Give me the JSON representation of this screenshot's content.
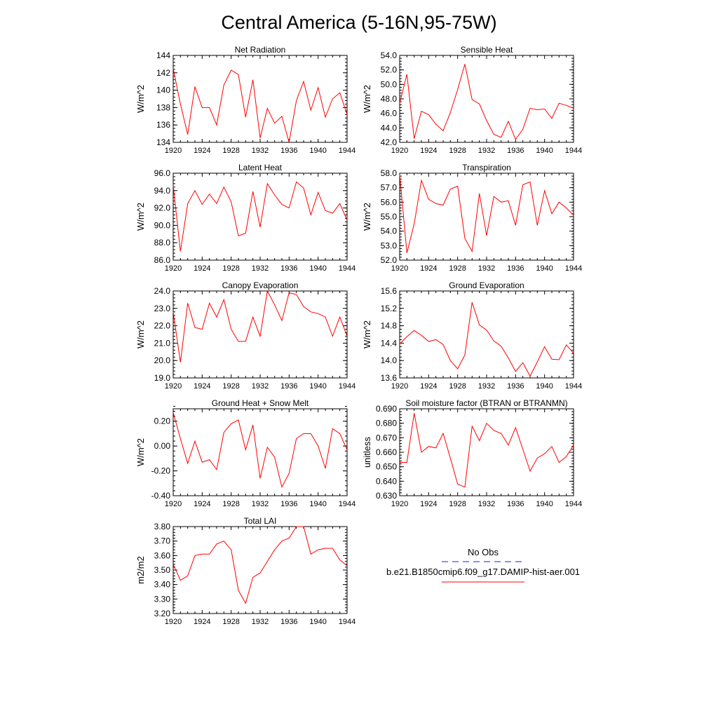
{
  "page_title": "Central America (5-16N,95-75W)",
  "legend": {
    "entries": [
      {
        "label": "No Obs",
        "color": "#1a1aff",
        "dash": true
      },
      {
        "label": "b.e21.B1850cmip6.f09_g17.DAMIP-hist-aer.001",
        "color": "#ff0000",
        "dash": false
      }
    ]
  },
  "colors": {
    "series": "#ff0000",
    "axis": "#000000"
  },
  "chart_data": [
    {
      "type": "line",
      "title": "Net Radiation",
      "ylabel": "W/m^2",
      "xlim": [
        1920,
        1944
      ],
      "ylim": [
        134,
        144
      ],
      "xticks": [
        1920,
        1924,
        1928,
        1932,
        1936,
        1940,
        1944
      ],
      "yticks": [
        134,
        136,
        138,
        140,
        142,
        144
      ],
      "ytick_labels": [
        "134",
        "136",
        "138",
        "140",
        "142",
        "144"
      ],
      "x": [
        1920,
        1921,
        1922,
        1923,
        1924,
        1925,
        1926,
        1927,
        1928,
        1929,
        1930,
        1931,
        1932,
        1933,
        1934,
        1935,
        1936,
        1937,
        1938,
        1939,
        1940,
        1941,
        1942,
        1943,
        1944
      ],
      "series": [
        {
          "values": [
            142.5,
            138.4,
            134.9,
            140.4,
            138.0,
            138.0,
            136.0,
            140.6,
            142.3,
            141.8,
            136.9,
            141.2,
            134.5,
            137.9,
            136.2,
            137.0,
            134.0,
            138.8,
            141.0,
            137.7,
            140.3,
            136.9,
            139.0,
            139.7,
            137.2
          ]
        }
      ]
    },
    {
      "type": "line",
      "title": "Sensible Heat",
      "ylabel": "W/m^2",
      "xlim": [
        1920,
        1944
      ],
      "ylim": [
        42,
        54
      ],
      "xticks": [
        1920,
        1924,
        1928,
        1932,
        1936,
        1940,
        1944
      ],
      "yticks": [
        42,
        44,
        46,
        48,
        50,
        52,
        54
      ],
      "ytick_labels": [
        "42.0",
        "44.0",
        "46.0",
        "48.0",
        "50.0",
        "52.0",
        "54.0"
      ],
      "x": [
        1920,
        1921,
        1922,
        1923,
        1924,
        1925,
        1926,
        1927,
        1928,
        1929,
        1930,
        1931,
        1932,
        1933,
        1934,
        1935,
        1936,
        1937,
        1938,
        1939,
        1940,
        1941,
        1942,
        1943,
        1944
      ],
      "series": [
        {
          "values": [
            47.4,
            51.4,
            42.5,
            46.3,
            45.8,
            44.5,
            43.6,
            46.1,
            49.3,
            52.8,
            47.9,
            47.3,
            45.0,
            43.1,
            42.7,
            44.9,
            42.4,
            43.8,
            46.7,
            46.5,
            46.6,
            45.3,
            47.4,
            47.1,
            46.7
          ]
        }
      ]
    },
    {
      "type": "line",
      "title": "Latent Heat",
      "ylabel": "W/m^2",
      "xlim": [
        1920,
        1944
      ],
      "ylim": [
        86,
        96
      ],
      "xticks": [
        1920,
        1924,
        1928,
        1932,
        1936,
        1940,
        1944
      ],
      "yticks": [
        86,
        88,
        90,
        92,
        94,
        96
      ],
      "ytick_labels": [
        "86.0",
        "88.0",
        "90.0",
        "92.0",
        "94.0",
        "96.0"
      ],
      "x": [
        1920,
        1921,
        1922,
        1923,
        1924,
        1925,
        1926,
        1927,
        1928,
        1929,
        1930,
        1931,
        1932,
        1933,
        1934,
        1935,
        1936,
        1937,
        1938,
        1939,
        1940,
        1941,
        1942,
        1943,
        1944
      ],
      "series": [
        {
          "values": [
            94.6,
            87.0,
            92.5,
            94.0,
            92.4,
            93.6,
            92.5,
            94.4,
            92.7,
            88.8,
            89.1,
            93.9,
            89.8,
            94.8,
            93.5,
            92.4,
            92.0,
            95.0,
            94.3,
            91.2,
            93.8,
            91.7,
            91.4,
            92.5,
            90.6
          ]
        }
      ]
    },
    {
      "type": "line",
      "title": "Transpiration",
      "ylabel": "W/m^2",
      "xlim": [
        1920,
        1944
      ],
      "ylim": [
        52,
        58
      ],
      "xticks": [
        1920,
        1924,
        1928,
        1932,
        1936,
        1940,
        1944
      ],
      "yticks": [
        52,
        53,
        54,
        55,
        56,
        57,
        58
      ],
      "ytick_labels": [
        "52.0",
        "53.0",
        "54.0",
        "55.0",
        "56.0",
        "57.0",
        "58.0"
      ],
      "x": [
        1920,
        1921,
        1922,
        1923,
        1924,
        1925,
        1926,
        1927,
        1928,
        1929,
        1930,
        1931,
        1932,
        1933,
        1934,
        1935,
        1936,
        1937,
        1938,
        1939,
        1940,
        1941,
        1942,
        1943,
        1944
      ],
      "series": [
        {
          "values": [
            57.9,
            52.5,
            54.5,
            57.5,
            56.2,
            55.9,
            55.8,
            56.9,
            57.1,
            53.5,
            52.6,
            56.6,
            53.7,
            56.4,
            56.0,
            56.1,
            54.4,
            57.2,
            57.4,
            54.4,
            56.8,
            55.2,
            56.0,
            55.6,
            55.1
          ]
        }
      ]
    },
    {
      "type": "line",
      "title": "Canopy Evaporation",
      "ylabel": "W/m^2",
      "xlim": [
        1920,
        1944
      ],
      "ylim": [
        19,
        24
      ],
      "xticks": [
        1920,
        1924,
        1928,
        1932,
        1936,
        1940,
        1944
      ],
      "yticks": [
        19,
        20,
        21,
        22,
        23,
        24
      ],
      "ytick_labels": [
        "19.0",
        "20.0",
        "21.0",
        "22.0",
        "23.0",
        "24.0"
      ],
      "x": [
        1920,
        1921,
        1922,
        1923,
        1924,
        1925,
        1926,
        1927,
        1928,
        1929,
        1930,
        1931,
        1932,
        1933,
        1934,
        1935,
        1936,
        1937,
        1938,
        1939,
        1940,
        1941,
        1942,
        1943,
        1944
      ],
      "series": [
        {
          "values": [
            22.8,
            19.9,
            23.3,
            21.9,
            21.8,
            23.3,
            22.5,
            23.5,
            21.8,
            21.1,
            21.1,
            22.5,
            21.4,
            24.0,
            23.2,
            22.3,
            23.9,
            23.8,
            23.1,
            22.8,
            22.7,
            22.5,
            21.4,
            22.5,
            21.4
          ]
        }
      ]
    },
    {
      "type": "line",
      "title": "Ground Evaporation",
      "ylabel": "W/m^2",
      "xlim": [
        1920,
        1944
      ],
      "ylim": [
        13.6,
        15.6
      ],
      "xticks": [
        1920,
        1924,
        1928,
        1932,
        1936,
        1940,
        1944
      ],
      "yticks": [
        13.6,
        14.0,
        14.4,
        14.8,
        15.2,
        15.6
      ],
      "ytick_labels": [
        "13.6",
        "14.0",
        "14.4",
        "14.8",
        "15.2",
        "15.6"
      ],
      "x": [
        1920,
        1921,
        1922,
        1923,
        1924,
        1925,
        1926,
        1927,
        1928,
        1929,
        1930,
        1931,
        1932,
        1933,
        1934,
        1935,
        1936,
        1937,
        1938,
        1939,
        1940,
        1941,
        1942,
        1943,
        1944
      ],
      "series": [
        {
          "values": [
            14.38,
            14.55,
            14.69,
            14.58,
            14.44,
            14.48,
            14.37,
            14.0,
            13.81,
            14.13,
            15.34,
            14.82,
            14.7,
            14.45,
            14.33,
            14.06,
            13.75,
            13.95,
            13.64,
            13.97,
            14.32,
            14.03,
            14.02,
            14.36,
            14.17
          ]
        }
      ]
    },
    {
      "type": "line",
      "title": "Ground Heat + Snow Melt",
      "ylabel": "W/m^2",
      "xlim": [
        1920,
        1944
      ],
      "ylim": [
        -0.4,
        0.3
      ],
      "xticks": [
        1920,
        1924,
        1928,
        1932,
        1936,
        1940,
        1944
      ],
      "yticks": [
        -0.4,
        -0.2,
        0.0,
        0.2
      ],
      "ytick_labels": [
        "-0.40",
        "-0.20",
        "0.00",
        "0.20"
      ],
      "x": [
        1920,
        1921,
        1922,
        1923,
        1924,
        1925,
        1926,
        1927,
        1928,
        1929,
        1930,
        1931,
        1932,
        1933,
        1934,
        1935,
        1936,
        1937,
        1938,
        1939,
        1940,
        1941,
        1942,
        1943,
        1944
      ],
      "series": [
        {
          "values": [
            0.27,
            0.06,
            -0.14,
            0.04,
            -0.13,
            -0.11,
            -0.19,
            0.11,
            0.18,
            0.21,
            -0.03,
            0.17,
            -0.26,
            -0.01,
            -0.09,
            -0.33,
            -0.22,
            0.06,
            0.1,
            0.1,
            0.0,
            -0.18,
            0.14,
            0.1,
            -0.03
          ]
        }
      ]
    },
    {
      "type": "line",
      "title": "Soil moisture factor (BTRAN or BTRANMN)",
      "ylabel": "unitless",
      "xlim": [
        1920,
        1944
      ],
      "ylim": [
        0.63,
        0.69
      ],
      "xticks": [
        1920,
        1924,
        1928,
        1932,
        1936,
        1940,
        1944
      ],
      "yticks": [
        0.63,
        0.64,
        0.65,
        0.66,
        0.67,
        0.68,
        0.69
      ],
      "ytick_labels": [
        "0.630",
        "0.640",
        "0.650",
        "0.660",
        "0.670",
        "0.680",
        "0.690"
      ],
      "x": [
        1920,
        1921,
        1922,
        1923,
        1924,
        1925,
        1926,
        1927,
        1928,
        1929,
        1930,
        1931,
        1932,
        1933,
        1934,
        1935,
        1936,
        1937,
        1938,
        1939,
        1940,
        1941,
        1942,
        1943,
        1944
      ],
      "series": [
        {
          "values": [
            0.653,
            0.653,
            0.687,
            0.66,
            0.664,
            0.663,
            0.673,
            0.656,
            0.638,
            0.636,
            0.678,
            0.668,
            0.68,
            0.675,
            0.673,
            0.665,
            0.677,
            0.662,
            0.647,
            0.656,
            0.659,
            0.664,
            0.653,
            0.657,
            0.665
          ]
        }
      ]
    },
    {
      "type": "line",
      "title": "Total LAI",
      "ylabel": "m2/m2",
      "xlim": [
        1920,
        1944
      ],
      "ylim": [
        3.2,
        3.8
      ],
      "xticks": [
        1920,
        1924,
        1928,
        1932,
        1936,
        1940,
        1944
      ],
      "yticks": [
        3.2,
        3.3,
        3.4,
        3.5,
        3.6,
        3.7,
        3.8
      ],
      "ytick_labels": [
        "3.20",
        "3.30",
        "3.40",
        "3.50",
        "3.60",
        "3.70",
        "3.80"
      ],
      "x": [
        1920,
        1921,
        1922,
        1923,
        1924,
        1925,
        1926,
        1927,
        1928,
        1929,
        1930,
        1931,
        1932,
        1933,
        1934,
        1935,
        1936,
        1937,
        1938,
        1939,
        1940,
        1941,
        1942,
        1943,
        1944
      ],
      "series": [
        {
          "values": [
            3.54,
            3.43,
            3.46,
            3.6,
            3.61,
            3.61,
            3.68,
            3.7,
            3.64,
            3.36,
            3.27,
            3.45,
            3.48,
            3.56,
            3.64,
            3.7,
            3.72,
            3.8,
            3.8,
            3.61,
            3.64,
            3.65,
            3.65,
            3.57,
            3.53
          ]
        }
      ]
    }
  ]
}
